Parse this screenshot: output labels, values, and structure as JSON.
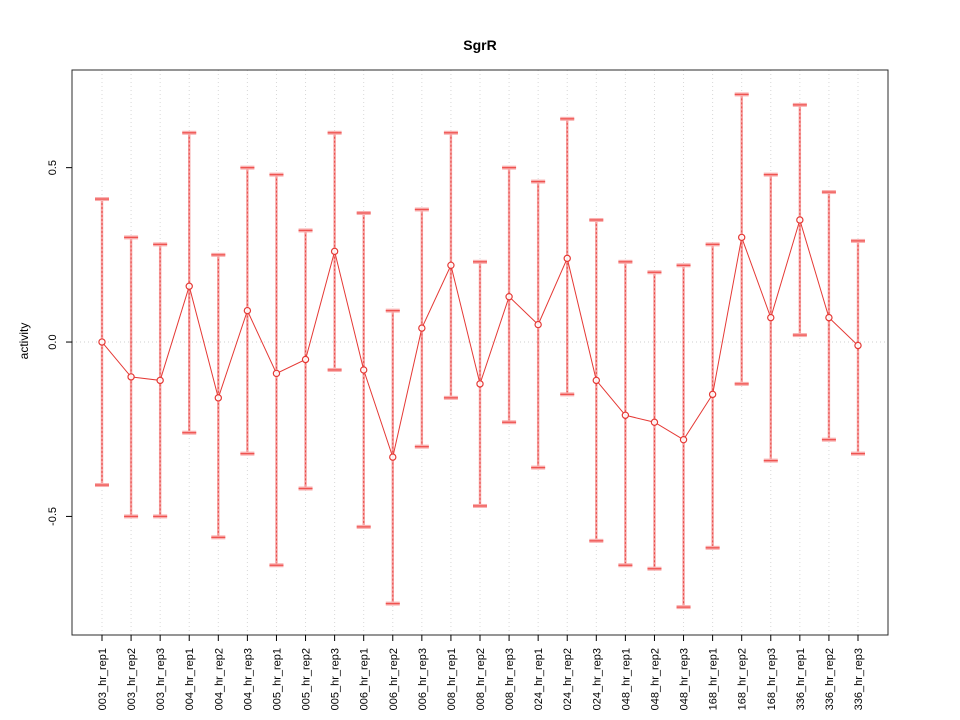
{
  "chart_data": {
    "type": "line",
    "title": "SgrR",
    "xlabel": "",
    "ylabel": "activity",
    "ylim": [
      -0.84,
      0.78
    ],
    "yticks": [
      0.5,
      0.0,
      -0.5
    ],
    "ytick_labels": [
      "0.5",
      "0.0",
      "-0.5"
    ],
    "grid": "dotted vertical gridline per category; dotted horizontal line at y=0; full box border",
    "legend": "none",
    "categories": [
      "003_hr_rep1",
      "003_hr_rep2",
      "003_hr_rep3",
      "004_hr_rep1",
      "004_hr_rep2",
      "004_hr_rep3",
      "005_hr_rep1",
      "005_hr_rep2",
      "005_hr_rep3",
      "006_hr_rep1",
      "006_hr_rep2",
      "006_hr_rep3",
      "008_hr_rep1",
      "008_hr_rep2",
      "008_hr_rep3",
      "024_hr_rep1",
      "024_hr_rep2",
      "024_hr_rep3",
      "048_hr_rep1",
      "048_hr_rep2",
      "048_hr_rep3",
      "168_hr_rep1",
      "168_hr_rep2",
      "168_hr_rep3",
      "336_hr_rep1",
      "336_hr_rep2",
      "336_hr_rep3"
    ],
    "series": [
      {
        "name": "activity",
        "marker": "open-circle",
        "values": [
          0.0,
          -0.1,
          -0.11,
          0.16,
          -0.16,
          0.09,
          -0.09,
          -0.05,
          0.26,
          -0.08,
          -0.33,
          0.04,
          0.22,
          -0.12,
          0.13,
          0.05,
          0.24,
          -0.11,
          -0.21,
          -0.23,
          -0.28,
          -0.15,
          0.3,
          0.07,
          0.35,
          0.07,
          -0.01
        ],
        "error_low": [
          -0.41,
          -0.5,
          -0.5,
          -0.26,
          -0.56,
          -0.32,
          -0.64,
          -0.42,
          -0.08,
          -0.53,
          -0.75,
          -0.3,
          -0.16,
          -0.47,
          -0.23,
          -0.36,
          -0.15,
          -0.57,
          -0.64,
          -0.65,
          -0.76,
          -0.59,
          -0.12,
          -0.34,
          0.02,
          -0.28,
          -0.32
        ],
        "error_high": [
          0.41,
          0.3,
          0.28,
          0.6,
          0.25,
          0.5,
          0.48,
          0.32,
          0.6,
          0.37,
          0.09,
          0.38,
          0.6,
          0.23,
          0.5,
          0.46,
          0.64,
          0.35,
          0.23,
          0.2,
          0.22,
          0.28,
          0.71,
          0.48,
          0.68,
          0.43,
          0.29
        ]
      }
    ],
    "colors": {
      "series": "#e53935",
      "error_bar_light": "#f6a0a0",
      "error_bar_dash": "#e53935",
      "cap_light": "#f9b0b0",
      "cap_line": "#ef5350",
      "grid": "#d8d8d8",
      "zero_line": "#cfcfcf",
      "border": "#2b2b2b",
      "tick": "#000000",
      "text": "#000000",
      "background": "#ffffff"
    }
  }
}
